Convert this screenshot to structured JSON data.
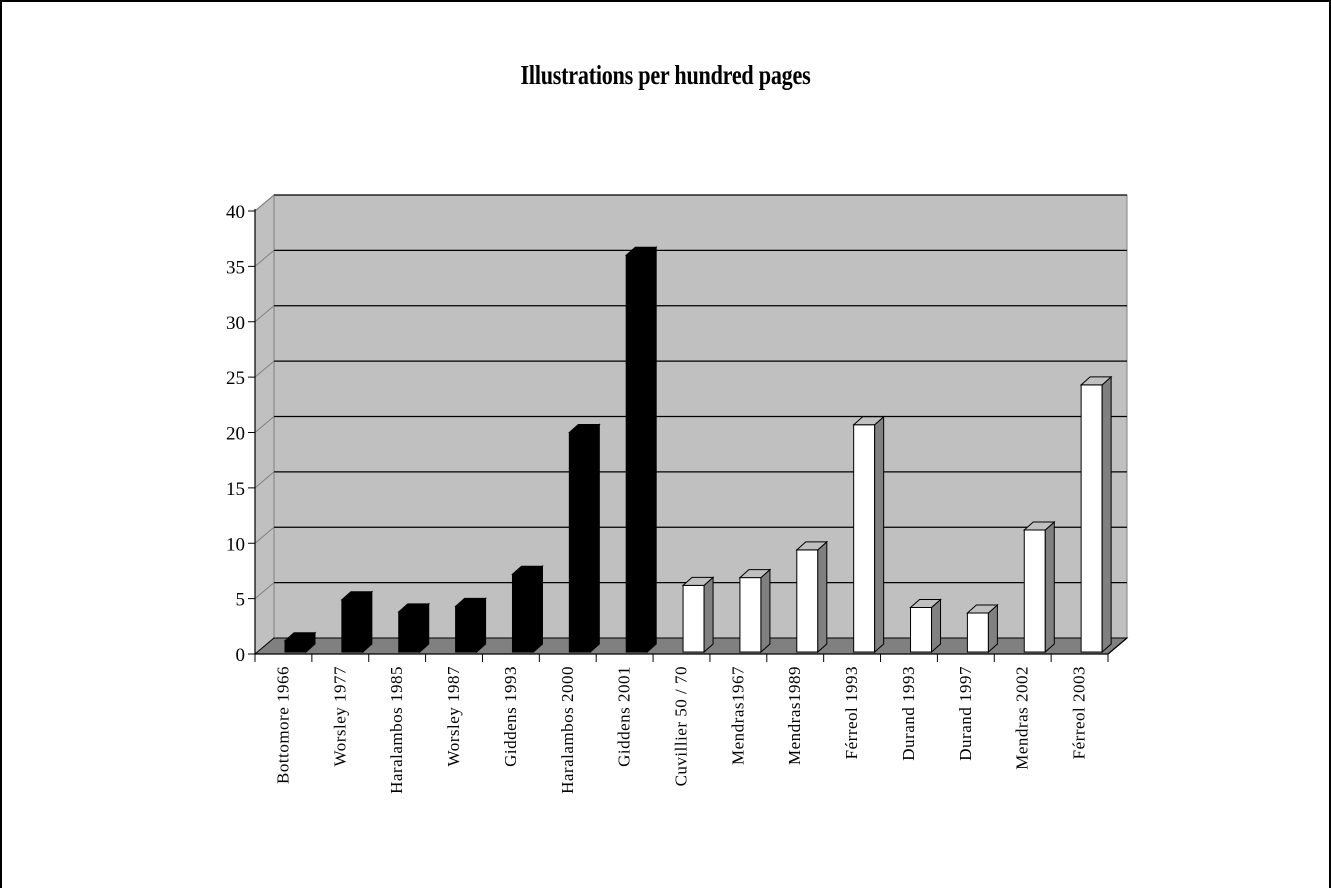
{
  "chart_data": {
    "type": "bar",
    "title": "Illustrations per hundred pages",
    "xlabel": "",
    "ylabel": "",
    "ylim": [
      0,
      40
    ],
    "yticks": [
      0,
      5,
      10,
      15,
      20,
      25,
      30,
      35,
      40
    ],
    "grid": true,
    "legend": "none",
    "categories": [
      "Bottomore 1966",
      "Worsley 1977",
      "Haralambos 1985",
      "Worsley 1987",
      "Giddens 1993",
      "Haralambos 2000",
      "Giddens 2001",
      "Cuvillier 50 / 70",
      "Mendras1967",
      "Mendras1989",
      "Férreol 1993",
      "Durand 1993",
      "Durand 1997",
      "Mendras 2002",
      "Férreol 2003"
    ],
    "values": [
      1.2,
      4.9,
      3.8,
      4.3,
      7.2,
      20.0,
      36.0,
      6.2,
      6.9,
      9.4,
      20.7,
      4.2,
      3.7,
      11.2,
      24.3
    ],
    "bar_colors": [
      "#000000",
      "#000000",
      "#000000",
      "#000000",
      "#000000",
      "#000000",
      "#000000",
      "#ffffff",
      "#ffffff",
      "#ffffff",
      "#ffffff",
      "#ffffff",
      "#ffffff",
      "#ffffff",
      "#ffffff"
    ],
    "colors": {
      "plot_back": "#c0c0c0",
      "plot_floor": "#808080",
      "bar_side_dark": "#808080",
      "bar_top_white": "#c0c0c0",
      "gridline": "#000000"
    }
  }
}
